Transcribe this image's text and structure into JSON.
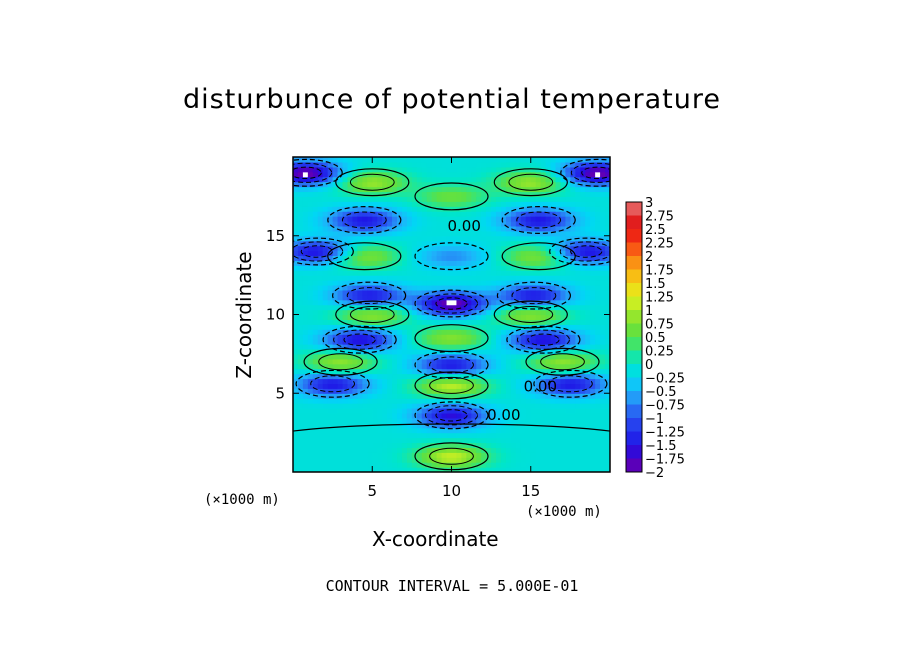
{
  "chart_data": {
    "type": "heatmap",
    "title": "disturbunce of potential temperature",
    "xlabel": "X-coordinate",
    "ylabel": "Z-coordinate",
    "x_unit_left": "(×1000 m)",
    "x_unit_right": "(×1000 m)",
    "xlim": [
      0,
      20
    ],
    "ylim": [
      0,
      20
    ],
    "x_ticks": [
      5,
      10,
      15
    ],
    "y_ticks": [
      5,
      10,
      15
    ],
    "x_tick_labels": [
      "5",
      "10",
      "15"
    ],
    "y_tick_labels": [
      "5",
      "10",
      "15"
    ],
    "colorbar": {
      "min": -2,
      "max": 3,
      "levels": [
        3,
        2.75,
        2.5,
        2.25,
        2,
        1.75,
        1.5,
        1.25,
        1,
        0.75,
        0.5,
        0.25,
        0,
        -0.25,
        -0.5,
        -0.75,
        -1,
        -1.25,
        -1.5,
        -1.75,
        -2
      ],
      "labels": [
        "3",
        "2.75",
        "2.5",
        "2.25",
        "2",
        "1.75",
        "1.5",
        "1.25",
        "1",
        "0.75",
        "0.5",
        "0.25",
        "0",
        "−0.25",
        "−0.5",
        "−0.75",
        "−1",
        "−1.25",
        "−1.5",
        "−1.75",
        "−2"
      ]
    },
    "contour_labels": [
      {
        "text": "0.00",
        "x": 10.8,
        "z": 15.3
      },
      {
        "text": "0.00",
        "x": 15.6,
        "z": 5.1
      },
      {
        "text": "0.00",
        "x": 13.3,
        "z": 3.3
      }
    ],
    "contour_interval_text": "CONTOUR INTERVAL = 5.000E-01",
    "features": [
      {
        "x": 10.0,
        "z": 10.7,
        "value": -1.9
      },
      {
        "x": 10.0,
        "z": 8.5,
        "value": 0.9
      },
      {
        "x": 10.0,
        "z": 5.5,
        "value": 1.2
      },
      {
        "x": 10.0,
        "z": 3.6,
        "value": -1.5
      },
      {
        "x": 10.0,
        "z": 13.7,
        "value": -0.6
      },
      {
        "x": 10.0,
        "z": 17.5,
        "value": 0.7
      },
      {
        "x": 10.0,
        "z": 1.0,
        "value": 1.2
      },
      {
        "x": 4.5,
        "z": 13.7,
        "value": 0.9
      },
      {
        "x": 15.5,
        "z": 13.7,
        "value": 0.9
      },
      {
        "x": 4.5,
        "z": 16.0,
        "value": -1.4
      },
      {
        "x": 15.5,
        "z": 16.0,
        "value": -1.4
      },
      {
        "x": 5.0,
        "z": 18.4,
        "value": 1.0
      },
      {
        "x": 15.0,
        "z": 18.4,
        "value": 1.0
      },
      {
        "x": 0.8,
        "z": 19.0,
        "value": -1.9
      },
      {
        "x": 19.2,
        "z": 19.0,
        "value": -1.9
      },
      {
        "x": 1.5,
        "z": 14.0,
        "value": -1.5
      },
      {
        "x": 18.5,
        "z": 14.0,
        "value": -1.5
      },
      {
        "x": 4.8,
        "z": 11.2,
        "value": -1.4
      },
      {
        "x": 15.2,
        "z": 11.2,
        "value": -1.4
      },
      {
        "x": 5.0,
        "z": 10.0,
        "value": 1.0
      },
      {
        "x": 15.0,
        "z": 10.0,
        "value": 1.0
      },
      {
        "x": 4.2,
        "z": 8.4,
        "value": -1.5
      },
      {
        "x": 15.8,
        "z": 8.4,
        "value": -1.5
      },
      {
        "x": 3.0,
        "z": 7.0,
        "value": 1.0
      },
      {
        "x": 17.0,
        "z": 7.0,
        "value": 1.0
      },
      {
        "x": 2.5,
        "z": 5.6,
        "value": -1.4
      },
      {
        "x": 17.5,
        "z": 5.6,
        "value": -1.4
      },
      {
        "x": 10.0,
        "z": 6.8,
        "value": -1.4
      }
    ]
  }
}
